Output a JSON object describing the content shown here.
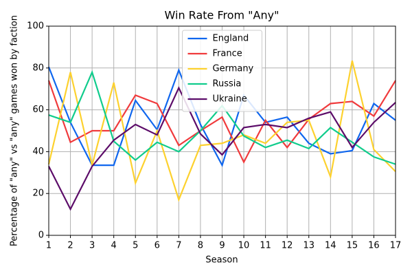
{
  "chart_data": {
    "type": "line",
    "title": "Win Rate From \"Any\"",
    "x_label": "Season",
    "y_label": "Percentage of \"any\" vs \"any\" games won by faction",
    "x": [
      1,
      2,
      3,
      4,
      5,
      6,
      7,
      8,
      9,
      10,
      11,
      12,
      13,
      14,
      15,
      16,
      17
    ],
    "xlim": [
      1,
      17
    ],
    "xticks": [
      1,
      2,
      3,
      4,
      5,
      6,
      7,
      8,
      9,
      10,
      11,
      12,
      13,
      14,
      15,
      16,
      17
    ],
    "ylim": [
      0,
      100
    ],
    "yticks": [
      0,
      20,
      40,
      60,
      80,
      100
    ],
    "grid": true,
    "legend": "upper center",
    "series": [
      {
        "name": "England",
        "color": "#0f66ee",
        "values": [
          80.5,
          54,
          33.5,
          33.5,
          64.5,
          50.5,
          79,
          53,
          33.5,
          67,
          54,
          56.5,
          44,
          39,
          40.5,
          63,
          55
        ]
      },
      {
        "name": "France",
        "color": "#f03a3c",
        "values": [
          74,
          44.5,
          50,
          50,
          67,
          63,
          43,
          50,
          56.5,
          35,
          55,
          42,
          55.5,
          63,
          64,
          57,
          74
        ]
      },
      {
        "name": "Germany",
        "color": "#fdd12e",
        "values": [
          34,
          78,
          33.5,
          73,
          25,
          50,
          17,
          43,
          44,
          48,
          44,
          54,
          55,
          28,
          83.5,
          41,
          30.5
        ]
      },
      {
        "name": "Russia",
        "color": "#10cc8c",
        "values": [
          57.5,
          54,
          78,
          45,
          36,
          44.5,
          40,
          50,
          62,
          47.5,
          42,
          45.5,
          41.5,
          51.5,
          44.5,
          37.5,
          34
        ]
      },
      {
        "name": "Ukraine",
        "color": "#5c0c69",
        "values": [
          33,
          12.5,
          33,
          45.5,
          53,
          48,
          70.5,
          48.5,
          38.5,
          51.5,
          53,
          51.5,
          56,
          59,
          42,
          54,
          63.5
        ]
      }
    ]
  }
}
